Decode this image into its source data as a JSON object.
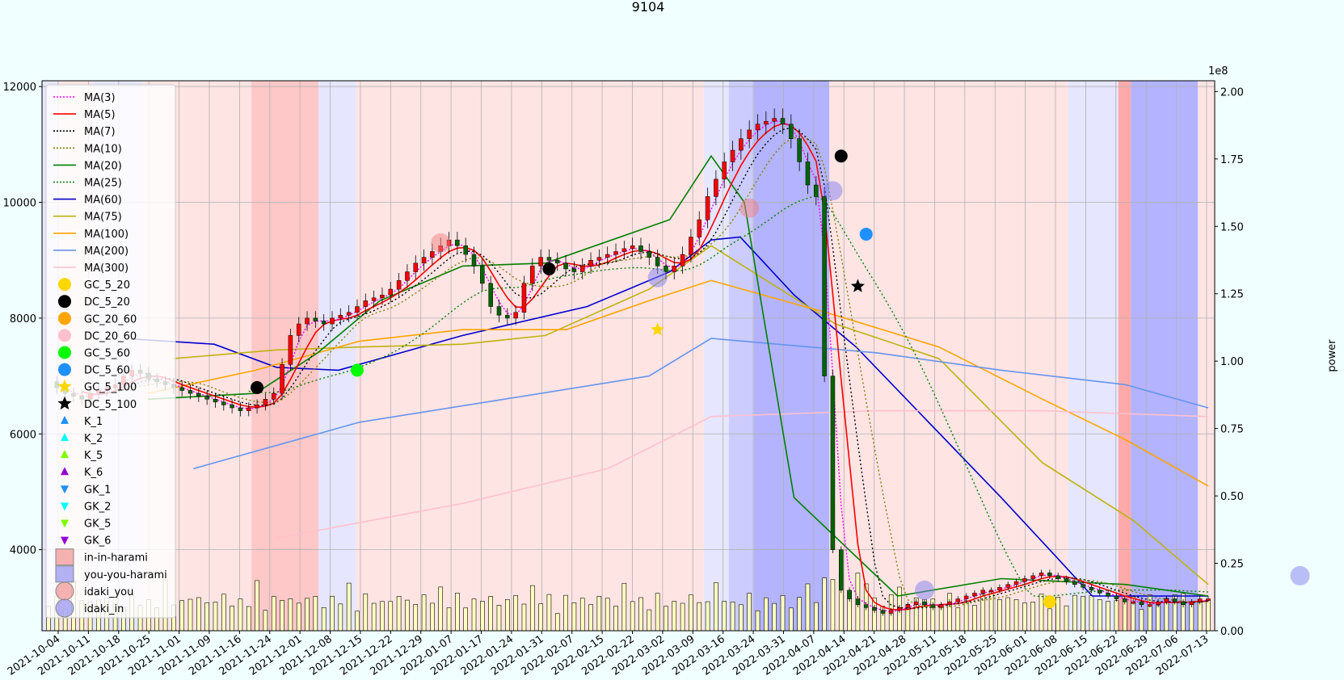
{
  "chart_data": {
    "type": "candlestick",
    "title": "9104",
    "xlabel": "",
    "ylabel": "",
    "y2label": "power",
    "y2_offset_text": "1e8",
    "ylim": [
      2600,
      12100
    ],
    "y2lim": [
      0,
      2.04
    ],
    "y_ticks": [
      4000,
      6000,
      8000,
      10000,
      12000
    ],
    "y2_ticks": [
      "0.00",
      "0.25",
      "0.50",
      "0.75",
      "1.00",
      "1.25",
      "1.50",
      "1.75",
      "2.00"
    ],
    "x_ticks": [
      "2021-10-04",
      "2021-10-11",
      "2021-10-18",
      "2021-10-25",
      "2021-11-01",
      "2021-11-09",
      "2021-11-16",
      "2021-11-24",
      "2021-12-01",
      "2021-12-08",
      "2021-12-15",
      "2021-12-22",
      "2021-12-29",
      "2022-01-07",
      "2022-01-17",
      "2022-01-24",
      "2022-01-31",
      "2022-02-07",
      "2022-02-15",
      "2022-02-22",
      "2022-03-02",
      "2022-03-09",
      "2022-03-16",
      "2022-03-24",
      "2022-03-31",
      "2022-04-07",
      "2022-04-14",
      "2022-04-21",
      "2022-04-28",
      "2022-05-11",
      "2022-05-18",
      "2022-05-25",
      "2022-06-01",
      "2022-06-08",
      "2022-06-15",
      "2022-06-22",
      "2022-06-29",
      "2022-07-06",
      "2022-07-13"
    ],
    "grid": true,
    "legend_position": "upper-left",
    "close": [
      6900,
      6800,
      6700,
      6650,
      6600,
      6700,
      6750,
      6800,
      6850,
      7000,
      7100,
      7050,
      6950,
      6900,
      6850,
      6800,
      6750,
      6700,
      6650,
      6600,
      6550,
      6500,
      6450,
      6400,
      6450,
      6500,
      6600,
      6700,
      7200,
      7700,
      7900,
      8000,
      7950,
      7900,
      8000,
      8050,
      8100,
      8200,
      8300,
      8350,
      8400,
      8500,
      8650,
      8800,
      8950,
      9050,
      9150,
      9250,
      9350,
      9250,
      9100,
      8900,
      8600,
      8200,
      8050,
      8000,
      8100,
      8600,
      8900,
      9050,
      9000,
      8950,
      8850,
      8800,
      8900,
      9000,
      9050,
      9100,
      9150,
      9200,
      9250,
      9150,
      9050,
      8900,
      8800,
      8900,
      9100,
      9400,
      9700,
      10100,
      10400,
      10700,
      10900,
      11100,
      11250,
      11350,
      11400,
      11450,
      11350,
      11100,
      10700,
      10300,
      10100,
      7000,
      4000,
      3300,
      3150,
      3050,
      3000,
      2950,
      2900,
      2950,
      3000,
      3050,
      3100,
      3050,
      3000,
      3050,
      3100,
      3150,
      3200,
      3250,
      3300,
      3300,
      3350,
      3400,
      3450,
      3500,
      3550,
      3600,
      3550,
      3500,
      3450,
      3400,
      3350,
      3300,
      3250,
      3200,
      3150,
      3100,
      3100,
      3050,
      3050,
      3100,
      3150,
      3100,
      3050,
      3100,
      3150,
      3150
    ],
    "series": [
      {
        "name": "MA(3)",
        "color": "#ff00ff",
        "style": "dotted"
      },
      {
        "name": "MA(5)",
        "color": "#ff0000",
        "style": "solid"
      },
      {
        "name": "MA(7)",
        "color": "#000000",
        "style": "dotted"
      },
      {
        "name": "MA(10)",
        "color": "#808000",
        "style": "dotted"
      },
      {
        "name": "MA(20)",
        "color": "#008000",
        "style": "solid"
      },
      {
        "name": "MA(25)",
        "color": "#008000",
        "style": "dotted"
      },
      {
        "name": "MA(60)",
        "color": "#0000cd",
        "style": "solid"
      },
      {
        "name": "MA(75)",
        "color": "#bdb30e",
        "style": "solid"
      },
      {
        "name": "MA(100)",
        "color": "#ffa500",
        "style": "solid"
      },
      {
        "name": "MA(200)",
        "color": "#6495ed",
        "style": "solid"
      },
      {
        "name": "MA(300)",
        "color": "#ffc0cb",
        "style": "solid"
      }
    ],
    "ma_curves": {
      "MA(60)": [
        [
          20,
          7640
        ],
        [
          40,
          7550
        ],
        [
          55,
          7150
        ],
        [
          70,
          7100
        ],
        [
          100,
          7700
        ],
        [
          130,
          8200
        ],
        [
          150,
          8800
        ],
        [
          160,
          9350
        ],
        [
          167,
          9400
        ],
        [
          180,
          8400
        ],
        [
          195,
          7500
        ],
        [
          230,
          4900
        ],
        [
          243,
          3900
        ],
        [
          252,
          3200
        ],
        [
          280,
          3200
        ]
      ],
      "MA(75)": [
        [
          30,
          7300
        ],
        [
          55,
          7450
        ],
        [
          75,
          7500
        ],
        [
          100,
          7550
        ],
        [
          120,
          7700
        ],
        [
          145,
          8500
        ],
        [
          160,
          9250
        ],
        [
          190,
          7900
        ],
        [
          215,
          7300
        ],
        [
          240,
          5500
        ],
        [
          262,
          4500
        ],
        [
          280,
          3400
        ]
      ],
      "MA(100)": [
        [
          24,
          6700
        ],
        [
          50,
          7100
        ],
        [
          75,
          7600
        ],
        [
          100,
          7800
        ],
        [
          125,
          7800
        ],
        [
          145,
          8300
        ],
        [
          160,
          8650
        ],
        [
          190,
          8050
        ],
        [
          215,
          7500
        ],
        [
          240,
          6600
        ],
        [
          260,
          5900
        ],
        [
          280,
          5100
        ]
      ],
      "MA(200)": [
        [
          35,
          5400
        ],
        [
          75,
          6200
        ],
        [
          110,
          6600
        ],
        [
          145,
          7000
        ],
        [
          160,
          7650
        ],
        [
          200,
          7400
        ],
        [
          230,
          7100
        ],
        [
          260,
          6850
        ],
        [
          280,
          6450
        ]
      ],
      "MA(300)": [
        [
          55,
          4200
        ],
        [
          100,
          4800
        ],
        [
          135,
          5400
        ],
        [
          160,
          6300
        ],
        [
          200,
          6400
        ],
        [
          240,
          6400
        ],
        [
          280,
          6300
        ]
      ],
      "MA(20)": [
        [
          24,
          6600
        ],
        [
          50,
          6700
        ],
        [
          65,
          7400
        ],
        [
          80,
          8300
        ],
        [
          100,
          8900
        ],
        [
          120,
          8950
        ],
        [
          150,
          9700
        ],
        [
          160,
          10800
        ],
        [
          168,
          10000
        ],
        [
          180,
          4900
        ],
        [
          205,
          3200
        ],
        [
          230,
          3500
        ],
        [
          260,
          3400
        ],
        [
          280,
          3200
        ]
      ]
    },
    "markers": {
      "GC_5_20": {
        "color": "#ffd700",
        "shape": "circle"
      },
      "DC_5_20": {
        "color": "#000000",
        "shape": "circle"
      },
      "GC_20_60": {
        "color": "#ffa500",
        "shape": "circle"
      },
      "DC_20_60": {
        "color": "#ffc0cb",
        "shape": "circle"
      },
      "GC_5_60": {
        "color": "#00ff00",
        "shape": "circle"
      },
      "DC_5_60": {
        "color": "#1e90ff",
        "shape": "circle"
      },
      "GC_5_100": {
        "color": "#ffd700",
        "shape": "star"
      },
      "DC_5_100": {
        "color": "#000000",
        "shape": "star"
      },
      "K_1": {
        "color": "#1e90ff",
        "shape": "triangle-up"
      },
      "K_2": {
        "color": "#00ffff",
        "shape": "triangle-up"
      },
      "K_5": {
        "color": "#7cfc00",
        "shape": "triangle-up"
      },
      "K_6": {
        "color": "#9400d3",
        "shape": "triangle-up"
      },
      "GK_1": {
        "color": "#1e90ff",
        "shape": "triangle-down"
      },
      "GK_2": {
        "color": "#00ffff",
        "shape": "triangle-down"
      },
      "GK_5": {
        "color": "#7cfc00",
        "shape": "triangle-down"
      },
      "GK_6": {
        "color": "#9400d3",
        "shape": "triangle-down"
      },
      "in-in-harami": {
        "color": "#f08080",
        "shape": "square"
      },
      "you-you-harami": {
        "color": "#8080f0",
        "shape": "square"
      },
      "idaki_you": {
        "color": "#f08080",
        "shape": "big-circle"
      },
      "idaki_in": {
        "color": "#8080f0",
        "shape": "big-circle"
      }
    },
    "legend": [
      "MA(3)",
      "MA(5)",
      "MA(7)",
      "MA(10)",
      "MA(20)",
      "MA(25)",
      "MA(60)",
      "MA(75)",
      "MA(100)",
      "MA(200)",
      "MA(300)",
      "GC_5_20",
      "DC_5_20",
      "GC_20_60",
      "DC_20_60",
      "GC_5_60",
      "DC_5_60",
      "GC_5_100",
      "DC_5_100",
      "K_1",
      "K_2",
      "K_5",
      "K_6",
      "GK_1",
      "GK_2",
      "GK_5",
      "GK_6",
      "in-in-harami",
      "you-you-harami",
      "idaki_you",
      "idaki_in"
    ]
  }
}
